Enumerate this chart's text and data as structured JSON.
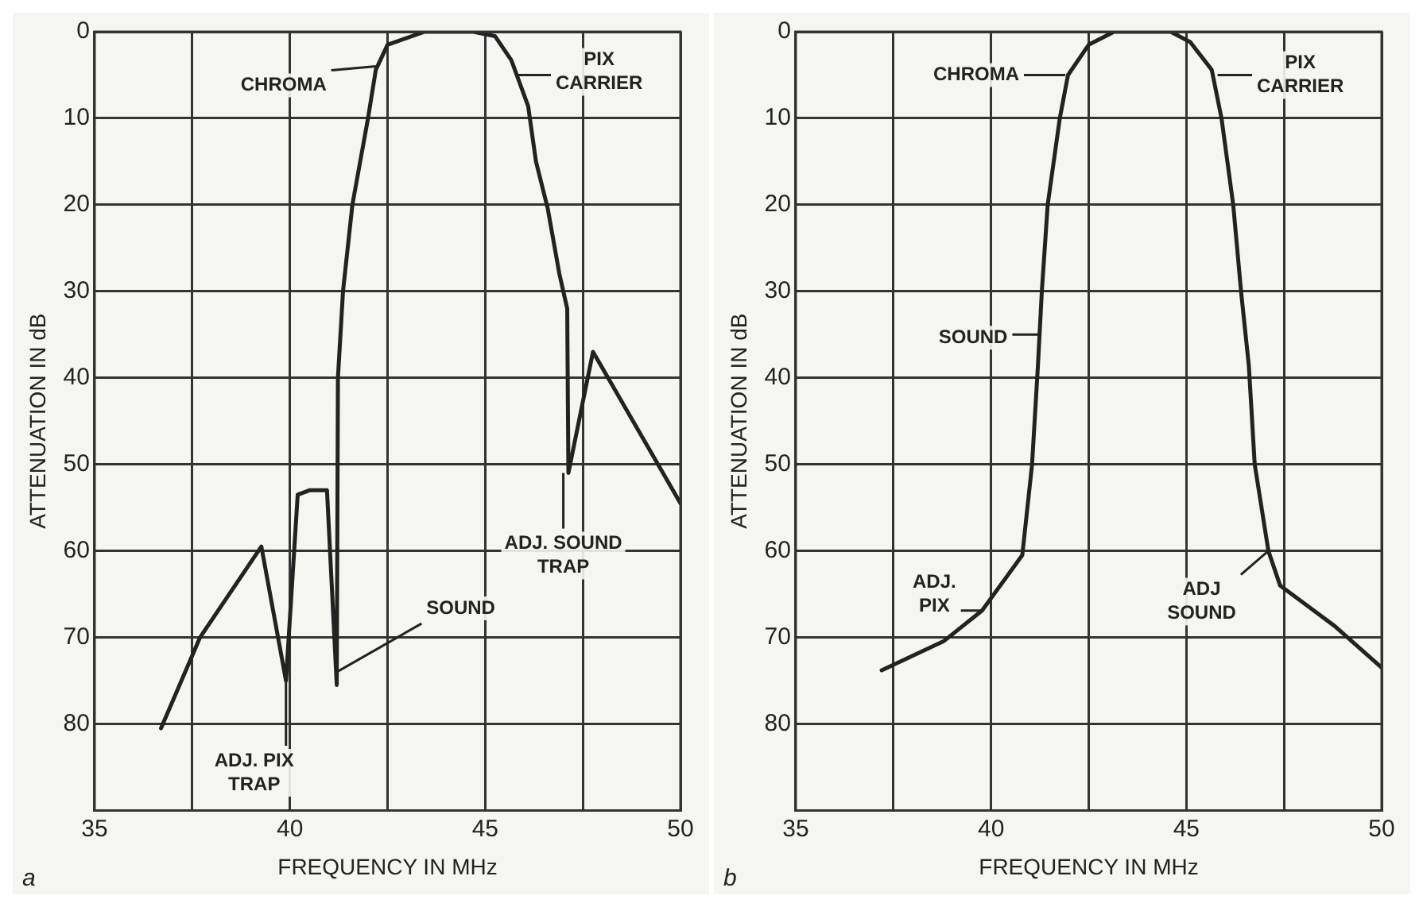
{
  "chart_data": [
    {
      "type": "line",
      "xlabel": "FREQUENCY IN MHz",
      "ylabel": "ATTENUATION IN dB",
      "xlim": [
        35,
        50
      ],
      "ylim": [
        90,
        0
      ],
      "grid": true,
      "xticks": [
        35,
        {
          "value": 37.5,
          "label": null
        },
        40,
        {
          "value": 42.5,
          "label": null
        },
        45,
        {
          "value": 47.5,
          "label": null
        },
        50
      ],
      "yticks": [
        0,
        10,
        20,
        30,
        40,
        50,
        60,
        70,
        80
      ],
      "series": [
        {
          "color": "#222222",
          "x": [
            36.7,
            37.7,
            39.27,
            39.9,
            40.2,
            40.5,
            40.95,
            41.2,
            41.23,
            41.36,
            41.6,
            42.0,
            42.2,
            42.5,
            43.45,
            44.7,
            45.25,
            45.67,
            46.1,
            46.3,
            46.6,
            46.9,
            47.1,
            47.13,
            47.76,
            50
          ],
          "values": [
            80.5,
            70,
            59.5,
            75,
            53.5,
            53,
            53,
            75.5,
            40,
            30,
            20,
            10,
            4.4,
            1.5,
            0,
            0,
            0.5,
            3.3,
            8.6,
            15,
            20.4,
            28,
            32,
            51,
            37,
            54.5
          ]
        }
      ],
      "annotations": [
        {
          "text": "CHROMA",
          "x": 42.2,
          "y": 4
        },
        {
          "text": "PIX\nCARRIER",
          "x": 45.8,
          "y": 5
        },
        {
          "text": "ADJ. PIX\nTRAP",
          "x": 39.9,
          "y": 75
        },
        {
          "text": "SOUND",
          "x": 41.2,
          "y": 74
        },
        {
          "text": "ADJ. SOUND\nTRAP",
          "x": 47.0,
          "y": 51
        },
        "a"
      ]
    },
    {
      "type": "line",
      "xlabel": "FREQUENCY IN MHz",
      "ylabel": "ATTENUATION IN dB",
      "xlim": [
        35,
        50
      ],
      "ylim": [
        90,
        0
      ],
      "grid": true,
      "xticks": [
        35,
        {
          "value": 37.5,
          "label": null
        },
        40,
        {
          "value": 42.5,
          "label": null
        },
        45,
        {
          "value": 47.5,
          "label": null
        },
        50
      ],
      "yticks": [
        0,
        10,
        20,
        30,
        40,
        50,
        60,
        70,
        80
      ],
      "series": [
        {
          "color": "#222222",
          "x": [
            37.2,
            38.8,
            39.77,
            40.8,
            41.05,
            41.2,
            41.3,
            41.45,
            41.76,
            41.97,
            42.5,
            43.15,
            44.6,
            45.1,
            45.65,
            45.9,
            46.2,
            46.4,
            46.6,
            46.75,
            47.1,
            47.4,
            48.8,
            50
          ],
          "values": [
            73.8,
            70.4,
            66.9,
            60.5,
            50,
            38.6,
            30,
            20,
            10,
            5,
            1.5,
            0,
            0,
            1.2,
            4.4,
            10,
            20,
            30,
            38.6,
            50,
            60,
            64,
            68.7,
            73.5
          ]
        }
      ],
      "annotations": [
        {
          "text": "CHROMA",
          "x": 41.9,
          "y": 5
        },
        {
          "text": "PIX\nCARRIER",
          "x": 45.8,
          "y": 5
        },
        {
          "text": "SOUND",
          "x": 41.25,
          "y": 35
        },
        {
          "text": "ADJ.\nPIX",
          "x": 39.77,
          "y": 66.9
        },
        {
          "text": "ADJ\nSOUND",
          "x": 47.1,
          "y": 60
        },
        "b"
      ]
    }
  ]
}
